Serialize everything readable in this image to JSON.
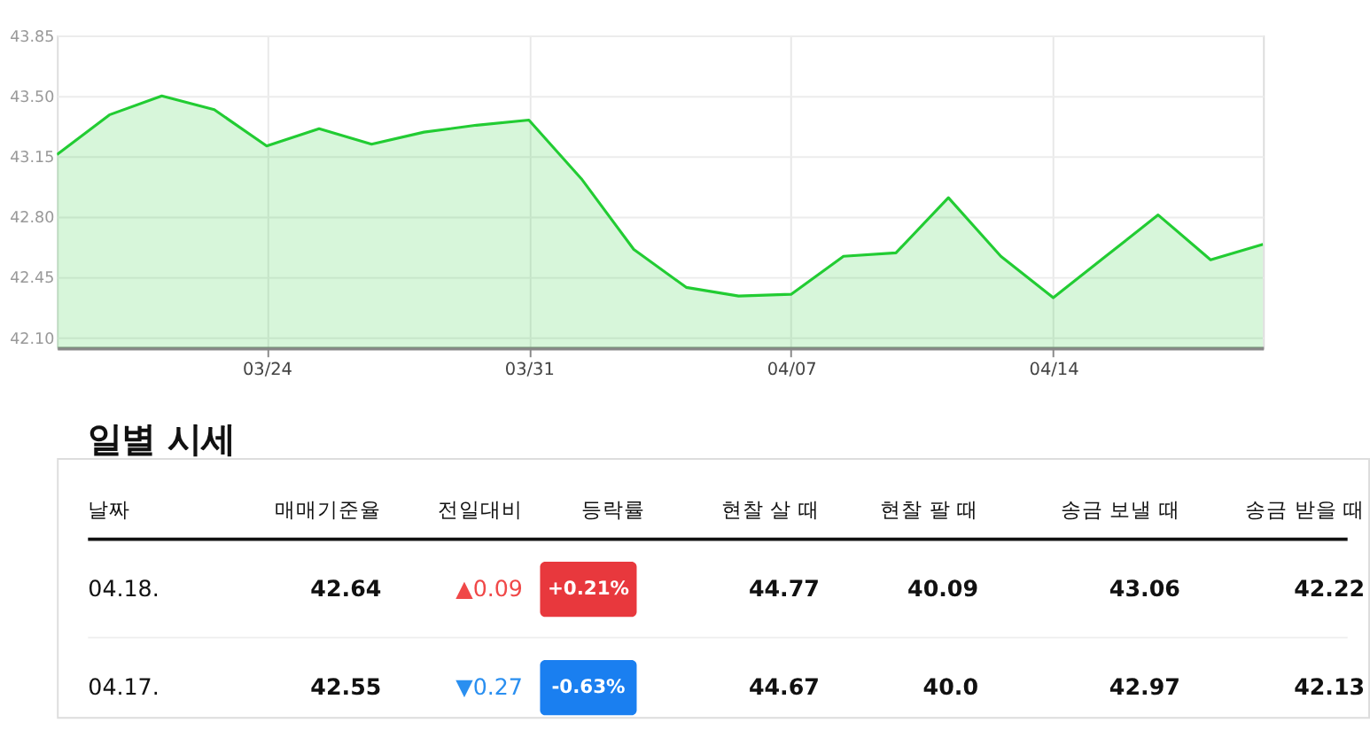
{
  "chart_data": [
    {
      "type": "area",
      "categories": [
        null,
        null,
        null,
        null,
        "03/24",
        null,
        null,
        null,
        null,
        "03/31",
        null,
        null,
        null,
        null,
        "04/07",
        null,
        null,
        null,
        null,
        "04/14",
        null,
        null,
        null,
        null
      ],
      "series": [
        {
          "color": "#22cc33",
          "values": [
            43.16,
            43.39,
            43.5,
            43.42,
            43.21,
            43.31,
            43.22,
            43.29,
            43.33,
            43.36,
            43.02,
            42.61,
            42.39,
            42.34,
            42.35,
            42.57,
            42.59,
            42.91,
            42.57,
            42.33,
            42.57,
            42.81,
            42.55,
            42.64
          ]
        }
      ],
      "ylim": [
        42.04,
        43.85
      ],
      "yticks": [
        {
          "value": 42.1,
          "label": "42.10"
        },
        {
          "value": 42.45,
          "label": "42.45"
        },
        {
          "value": 42.8,
          "label": "42.80"
        },
        {
          "value": 43.15,
          "label": "43.15"
        },
        {
          "value": 43.5,
          "label": "43.50"
        },
        {
          "value": 43.85,
          "label": "43.85"
        }
      ],
      "grid": true
    },
    {
      "type": "other",
      "title": "일별 시세",
      "annotations": [
        "날짜",
        "매매기준율",
        "전일대비",
        "등락률",
        "현찰 살 때",
        "현찰 팔 때",
        "송금 보낼 때",
        "송금 받을 때",
        "04.18.",
        "42.64",
        "▲0.09",
        "+0.21%",
        "44.77",
        "40.09",
        "43.06",
        "42.22",
        "04.17.",
        "42.55",
        "▼0.27",
        "-0.63%",
        "44.67",
        "40.0",
        "42.97",
        "42.13"
      ],
      "colors": [
        null,
        null,
        null,
        null,
        null,
        null,
        null,
        null,
        null,
        null,
        "#f04848",
        "#e8383d",
        null,
        null,
        null,
        null,
        null,
        null,
        "#2a8ff0",
        "#1a7ff0",
        null,
        null,
        null,
        null
      ]
    }
  ]
}
